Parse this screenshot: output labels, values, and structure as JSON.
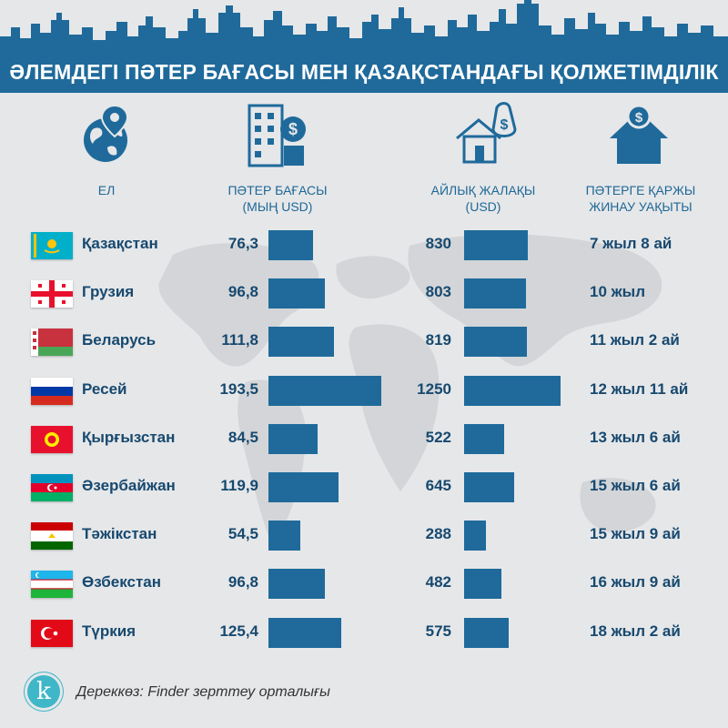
{
  "title": "ӘЛЕМДЕГІ ПӘТЕР БАҒАСЫ МЕН ҚАЗАҚСТАНДАҒЫ ҚОЛЖЕТІМДІЛІК",
  "columns": {
    "country": "ЕЛ",
    "price": "ПӘТЕР БАҒАСЫ\n(МЫҢ USD)",
    "salary": "АЙЛЫҚ ЖАЛАҚЫ\n(USD)",
    "period": "ПӘТЕРГЕ ҚАРЖЫ\nЖИНАУ УАҚЫТЫ"
  },
  "icons": {
    "country": "globe-pin-icon",
    "price": "building-dollar-icon",
    "salary": "salary-house-icon",
    "period": "house-coin-icon",
    "logo": "k-logo-icon"
  },
  "colors": {
    "banner": "#1f6a9b",
    "bar": "#1f6a9b",
    "text": "#17496f",
    "background": "#e6e7e9"
  },
  "chart_data": {
    "type": "bar",
    "categories": [
      "Қазақстан",
      "Грузия",
      "Беларусь",
      "Ресей",
      "Қырғызстан",
      "Әзербайжан",
      "Тәжікстан",
      "Өзбекстан",
      "Түркия"
    ],
    "series": [
      {
        "name": "ПӘТЕР БАҒАСЫ (МЫҢ USD)",
        "values": [
          76.3,
          96.8,
          111.8,
          193.5,
          84.5,
          119.9,
          54.5,
          96.8,
          125.4
        ],
        "labels": [
          "76,3",
          "96,8",
          "111,8",
          "193,5",
          "84,5",
          "119,9",
          "54,5",
          "96,8",
          "125,4"
        ]
      },
      {
        "name": "АЙЛЫҚ ЖАЛАҚЫ (USD)",
        "values": [
          830,
          803,
          819,
          1250,
          522,
          645,
          288,
          482,
          575
        ],
        "labels": [
          "830",
          "803",
          "819",
          "1250",
          "522",
          "645",
          "288",
          "482",
          "575"
        ]
      }
    ],
    "periods": [
      "7 жыл 8 ай",
      "10 жыл",
      "11 жыл 2 ай",
      "12 жыл 11 ай",
      "13 жыл 6 ай",
      "15 жыл 6 ай",
      "15 жыл 9 ай",
      "16 жыл 9 ай",
      "18 жыл 2 ай"
    ],
    "flags": [
      "kazakhstan",
      "georgia",
      "belarus",
      "russia",
      "kyrgyzstan",
      "azerbaijan",
      "tajikistan",
      "uzbekistan",
      "turkey"
    ]
  },
  "source": "Дереккөз: Finder зерттеу орталығы",
  "logo_letter": "k"
}
